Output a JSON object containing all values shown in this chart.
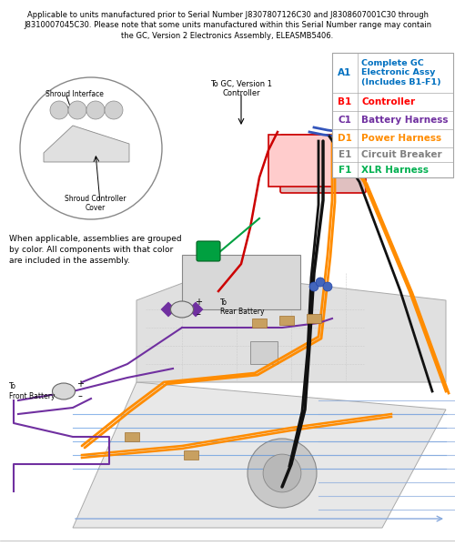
{
  "header_text": "Applicable to units manufactured prior to Serial Number J8307807126C30 and J8308607001C30 through\nJ8310007045C30. Please note that some units manufactured within this Serial Number range may contain\nthe GC, Version 2 Electronics Assembly, ELEASMB5406.",
  "legend": [
    {
      "code": "A1",
      "label": "Complete GC\nElectronic Assy\n(Includes B1-F1)",
      "code_color": "#0070C0",
      "label_color": "#0070C0"
    },
    {
      "code": "B1",
      "label": "Controller",
      "code_color": "#FF0000",
      "label_color": "#FF0000"
    },
    {
      "code": "C1",
      "label": "Battery Harness",
      "code_color": "#7030A0",
      "label_color": "#7030A0"
    },
    {
      "code": "D1",
      "label": "Power Harness",
      "code_color": "#FF8C00",
      "label_color": "#FF8C00"
    },
    {
      "code": "E1",
      "label": "Circuit Breaker",
      "code_color": "#808080",
      "label_color": "#808080"
    },
    {
      "code": "F1",
      "label": "XLR Harness",
      "code_color": "#00B050",
      "label_color": "#00B050"
    }
  ],
  "bg_color": "#FFFFFF",
  "header_fontsize": 6.0,
  "note_text": "When applicable, assemblies are grouped\nby color. All components with that color\nare included in the assembly.",
  "shroud_label_interface": "Shroud Interface",
  "shroud_label_cover": "Shroud Controller\nCover",
  "gc_version_label": "To GC, Version 1\nController",
  "battery_rear_label": "To\nRear Battery",
  "battery_front_label": "To\nFront Battery",
  "colors": {
    "orange": "#FF8C00",
    "black": "#111111",
    "purple": "#7030A0",
    "red": "#CC0000",
    "green": "#00A040",
    "blue": "#0070C0",
    "blue_light": "#4488DD",
    "gray_line": "#888888",
    "gray_fill": "#D8D8D8",
    "gray_light": "#EEEEEE",
    "tan": "#C8A060",
    "tan_dark": "#A07030"
  }
}
